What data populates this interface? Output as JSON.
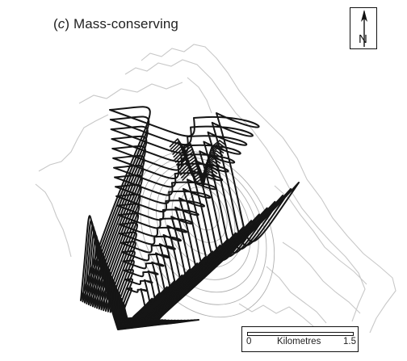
{
  "panel": {
    "letter": "c",
    "title": "Mass-conserving"
  },
  "north_arrow": {
    "label": "N"
  },
  "scale_bar": {
    "min_label": "0",
    "unit_label": "Kilometres",
    "max_label": "1.5"
  },
  "colors": {
    "contour": "#151515",
    "background_terrain": "#c8c8c8",
    "inner_terrain": "#b0b0b0"
  }
}
